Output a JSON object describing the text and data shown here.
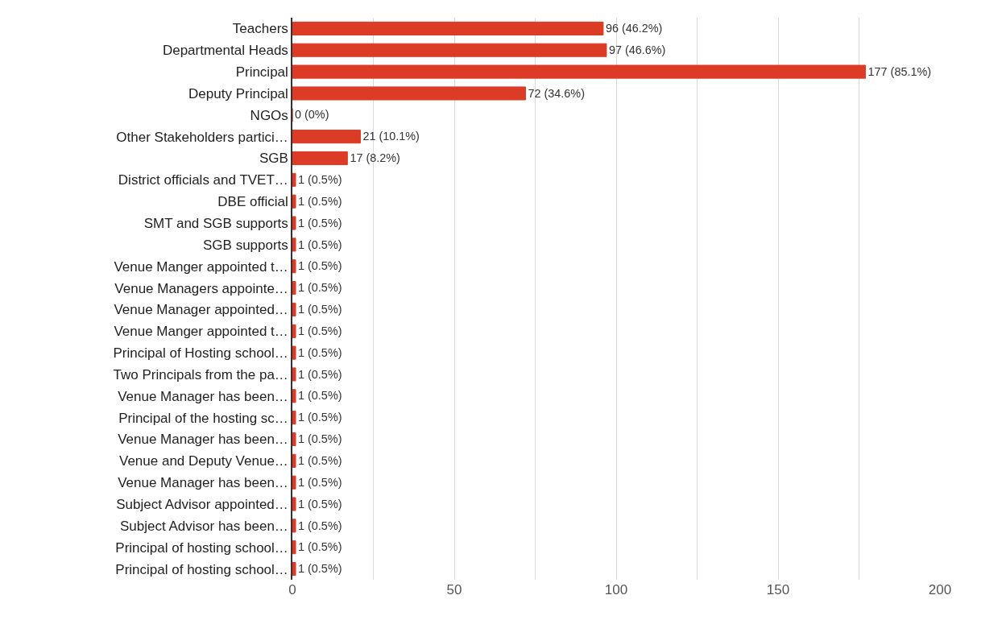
{
  "chart_data": {
    "type": "bar",
    "orientation": "horizontal",
    "categories": [
      "Teachers",
      "Departmental Heads",
      "Principal",
      "Deputy Principal",
      "NGOs",
      "Other Stakeholders partici…",
      "SGB",
      "District officials and TVET…",
      "DBE official",
      "SMT and SGB supports",
      "SGB supports",
      "Venue Manger appointed t…",
      "Venue Managers appointe…",
      "Venue Manager appointed…",
      "Venue Manger appointed t…",
      "Principal of Hosting school…",
      "Two Principals from the pa…",
      "Venue Manager has been…",
      "Principal of the hosting sc…",
      "Venue Manager has been…",
      "Venue and Deputy Venue…",
      "Venue Manager has been…",
      "Subject Advisor appointed…",
      "Subject Advisor has been…",
      "Principal of hosting school…",
      "Principal of hosting school…"
    ],
    "values": [
      96,
      97,
      177,
      72,
      0,
      21,
      17,
      1,
      1,
      1,
      1,
      1,
      1,
      1,
      1,
      1,
      1,
      1,
      1,
      1,
      1,
      1,
      1,
      1,
      1,
      1
    ],
    "value_labels": [
      "96 (46.2%)",
      "97 (46.6%)",
      "177 (85.1%)",
      "72 (34.6%)",
      "0 (0%)",
      "21 (10.1%)",
      "17 (8.2%)",
      "1 (0.5%)",
      "1 (0.5%)",
      "1 (0.5%)",
      "1 (0.5%)",
      "1 (0.5%)",
      "1 (0.5%)",
      "1 (0.5%)",
      "1 (0.5%)",
      "1 (0.5%)",
      "1 (0.5%)",
      "1 (0.5%)",
      "1 (0.5%)",
      "1 (0.5%)",
      "1 (0.5%)",
      "1 (0.5%)",
      "1 (0.5%)",
      "1 (0.5%)",
      "1 (0.5%)",
      "1 (0.5%)"
    ],
    "color": "#dc3b26",
    "xlim": [
      0,
      200
    ],
    "xticks": [
      0,
      {
        "value": 25,
        "label": null
      },
      50,
      {
        "value": 75,
        "label": null
      },
      100,
      {
        "value": 125,
        "label": null
      },
      150,
      {
        "value": 175,
        "label": null
      },
      200
    ],
    "grid": "x",
    "legend": false
  }
}
